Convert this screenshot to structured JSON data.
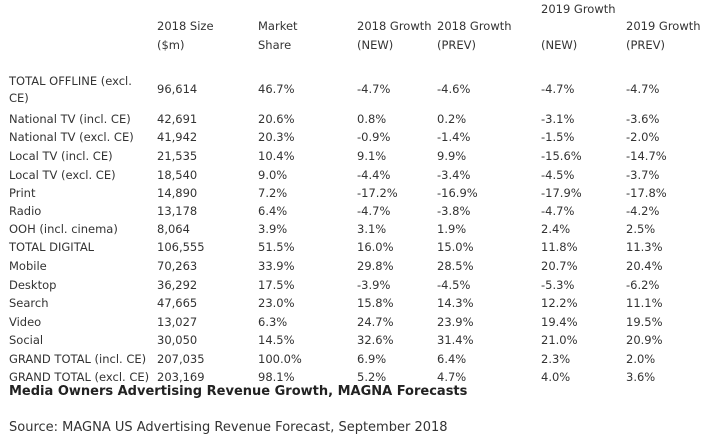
{
  "chart_data": {
    "type": "table",
    "title": "",
    "caption": "Media Owners Advertising Revenue Growth, MAGNA Forecasts",
    "source": "Source: MAGNA US Advertising Revenue Forecast, September 2018",
    "columns": [
      {
        "lines": [
          "",
          ""
        ]
      },
      {
        "lines": [
          "2018 Size",
          "($m)"
        ]
      },
      {
        "lines": [
          "Market",
          "Share"
        ]
      },
      {
        "lines": [
          "2018 Growth",
          "(NEW)"
        ]
      },
      {
        "lines": [
          "2018 Growth",
          "(PREV)"
        ]
      },
      {
        "lines": [
          "2019 Growth",
          "(NEW)"
        ]
      },
      {
        "lines": [
          "2019 Growth",
          "(PREV)"
        ]
      }
    ],
    "rows": [
      {
        "label": "TOTAL OFFLINE (excl.",
        "label2": "CE)",
        "values": [
          "96,614",
          "46.7%",
          "-4.7%",
          "-4.6%",
          "-4.7%",
          "-4.7%"
        ]
      },
      {
        "label": "National TV (incl. CE)",
        "values": [
          "42,691",
          "20.6%",
          "0.8%",
          "0.2%",
          "-3.1%",
          "-3.6%"
        ]
      },
      {
        "label": "National TV (excl. CE)",
        "values": [
          "41,942",
          "20.3%",
          "-0.9%",
          "-1.4%",
          "-1.5%",
          "-2.0%"
        ]
      },
      {
        "label": "Local TV (incl. CE)",
        "values": [
          "21,535",
          "10.4%",
          "9.1%",
          "9.9%",
          "-15.6%",
          "-14.7%"
        ]
      },
      {
        "label": "Local TV (excl. CE)",
        "values": [
          "18,540",
          "9.0%",
          "-4.4%",
          "-3.4%",
          "-4.5%",
          "-3.7%"
        ]
      },
      {
        "label": "Print",
        "values": [
          "14,890",
          "7.2%",
          "-17.2%",
          "-16.9%",
          "-17.9%",
          "-17.8%"
        ]
      },
      {
        "label": "Radio",
        "values": [
          "13,178",
          "6.4%",
          "-4.7%",
          "-3.8%",
          "-4.7%",
          "-4.2%"
        ]
      },
      {
        "label": "OOH (incl. cinema)",
        "values": [
          "8,064",
          "3.9%",
          "3.1%",
          "1.9%",
          "2.4%",
          "2.5%"
        ]
      },
      {
        "label": "TOTAL DIGITAL",
        "values": [
          "106,555",
          "51.5%",
          "16.0%",
          "15.0%",
          "11.8%",
          "11.3%"
        ]
      },
      {
        "label": "Mobile",
        "values": [
          "70,263",
          "33.9%",
          "29.8%",
          "28.5%",
          "20.7%",
          "20.4%"
        ]
      },
      {
        "label": "Desktop",
        "values": [
          "36,292",
          "17.5%",
          "-3.9%",
          "-4.5%",
          "-5.3%",
          "-6.2%"
        ]
      },
      {
        "label": "Search",
        "values": [
          "47,665",
          "23.0%",
          "15.8%",
          "14.3%",
          "12.2%",
          "11.1%"
        ]
      },
      {
        "label": "Video",
        "values": [
          "13,027",
          "6.3%",
          "24.7%",
          "23.9%",
          "19.4%",
          "19.5%"
        ]
      },
      {
        "label": "Social",
        "values": [
          "30,050",
          "14.5%",
          "32.6%",
          "31.4%",
          "21.0%",
          "20.9%"
        ]
      },
      {
        "label": "GRAND TOTAL (incl. CE)",
        "values": [
          "207,035",
          "100.0%",
          "6.9%",
          "6.4%",
          "2.3%",
          "2.0%"
        ]
      },
      {
        "label": "GRAND TOTAL (excl. CE)",
        "values": [
          "203,169",
          "98.1%",
          "5.2%",
          "4.7%",
          "4.0%",
          "3.6%"
        ]
      }
    ]
  }
}
